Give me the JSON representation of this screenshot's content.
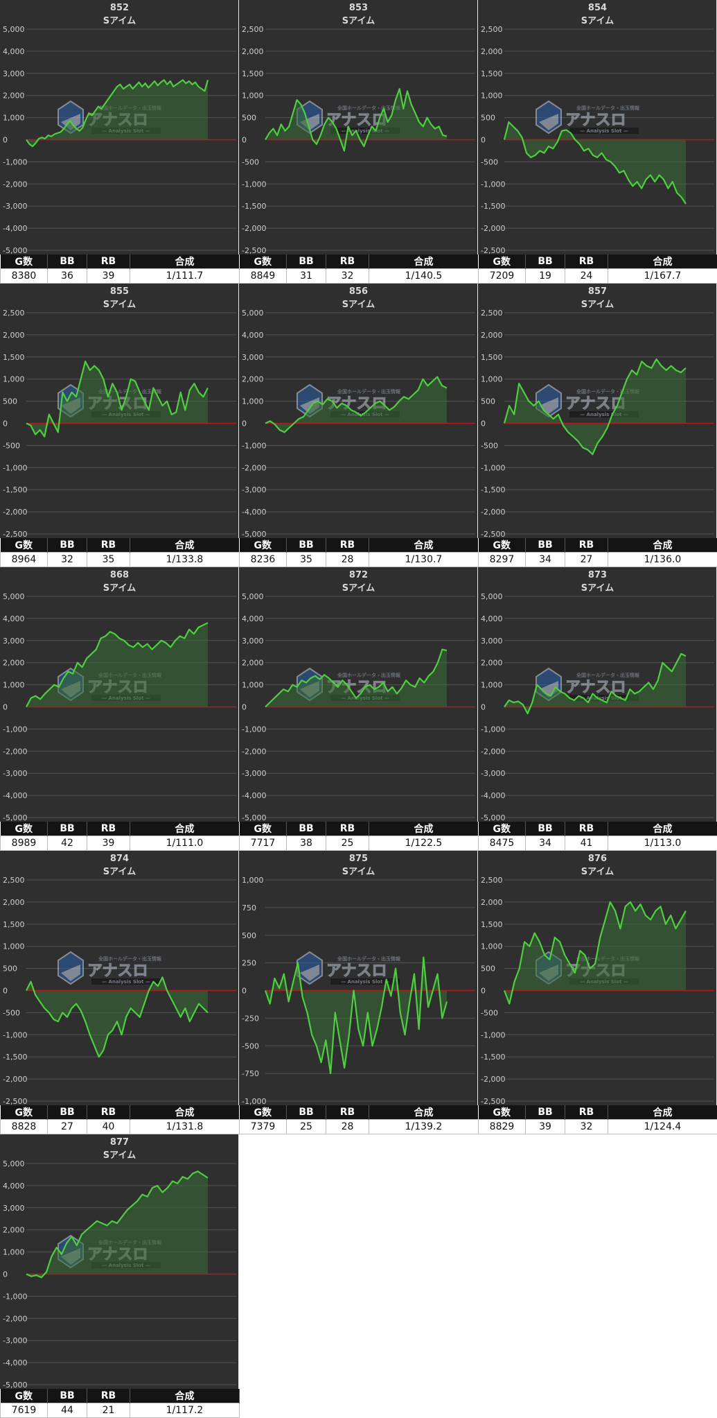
{
  "table_headers": [
    "G数",
    "BB",
    "RB",
    "合成"
  ],
  "watermark": {
    "brand": "アナスロ",
    "tagline": "Analysis Slot",
    "top_line": "全国ホールデータ・出玉情報"
  },
  "colors": {
    "line": "#4ecf40",
    "fill": "#3b6d36",
    "zero_line": "#b01d1d",
    "grid": "#555555",
    "panel_bg": "#2f2f2f"
  },
  "chart_data": [
    {
      "type": "line",
      "title": "852",
      "subtitle": "Sアイム",
      "ylim": [
        -5000,
        5000
      ],
      "yticks": [
        5000,
        4000,
        3000,
        2000,
        1000,
        0,
        -1000,
        -2000,
        -3000,
        -4000,
        -5000
      ],
      "values": [
        0,
        -200,
        -300,
        -150,
        50,
        100,
        50,
        200,
        150,
        250,
        300,
        350,
        500,
        700,
        850,
        650,
        500,
        400,
        550,
        900,
        1200,
        1100,
        1300,
        1500,
        1400,
        1600,
        1800,
        2000,
        2200,
        2400,
        2500,
        2300,
        2400,
        2500,
        2300,
        2450,
        2600,
        2400,
        2550,
        2350,
        2500,
        2650,
        2450,
        2600,
        2700,
        2500,
        2650,
        2400,
        2500,
        2600,
        2700,
        2550,
        2650,
        2500,
        2600,
        2400,
        2300,
        2200,
        2700
      ],
      "stats": {
        "games": "8380",
        "bb": "36",
        "rb": "39",
        "combined": "1/111.7"
      }
    },
    {
      "type": "line",
      "title": "853",
      "subtitle": "Sアイム",
      "ylim": [
        -2500,
        2500
      ],
      "yticks": [
        2500,
        2000,
        1500,
        1000,
        500,
        0,
        -500,
        -1000,
        -1500,
        -2000,
        -2500
      ],
      "values": [
        0,
        150,
        250,
        100,
        350,
        200,
        300,
        600,
        900,
        800,
        600,
        300,
        0,
        -100,
        100,
        350,
        500,
        400,
        250,
        0,
        -250,
        300,
        100,
        200,
        0,
        -150,
        100,
        300,
        200,
        500,
        700,
        400,
        550,
        900,
        1150,
        700,
        1100,
        800,
        600,
        400,
        300,
        500,
        350,
        250,
        300,
        100,
        80
      ],
      "stats": {
        "games": "8849",
        "bb": "31",
        "rb": "32",
        "combined": "1/140.5"
      }
    },
    {
      "type": "line",
      "title": "854",
      "subtitle": "Sアイム",
      "ylim": [
        -2500,
        2500
      ],
      "yticks": [
        2500,
        2000,
        1500,
        1000,
        500,
        0,
        -500,
        -1000,
        -1500,
        -2000,
        -2500
      ],
      "values": [
        0,
        400,
        300,
        200,
        50,
        -300,
        -400,
        -350,
        -250,
        -300,
        -150,
        -200,
        -50,
        200,
        220,
        150,
        0,
        -100,
        -250,
        -200,
        -350,
        -400,
        -300,
        -450,
        -500,
        -600,
        -750,
        -700,
        -900,
        -1050,
        -950,
        -1100,
        -900,
        -800,
        -950,
        -800,
        -900,
        -1100,
        -950,
        -1200,
        -1300,
        -1450
      ],
      "stats": {
        "games": "7209",
        "bb": "19",
        "rb": "24",
        "combined": "1/167.7"
      }
    },
    {
      "type": "line",
      "title": "855",
      "subtitle": "Sアイム",
      "ylim": [
        -2500,
        2500
      ],
      "yticks": [
        2500,
        2000,
        1500,
        1000,
        500,
        0,
        -500,
        -1000,
        -1500,
        -2000,
        -2500
      ],
      "values": [
        0,
        -50,
        -250,
        -150,
        -300,
        200,
        0,
        -200,
        700,
        500,
        700,
        600,
        1000,
        1400,
        1200,
        1300,
        1200,
        1000,
        600,
        900,
        700,
        300,
        600,
        1000,
        950,
        700,
        500,
        300,
        800,
        600,
        400,
        500,
        200,
        250,
        700,
        300,
        750,
        900,
        700,
        600,
        800
      ],
      "stats": {
        "games": "8964",
        "bb": "32",
        "rb": "35",
        "combined": "1/133.8"
      }
    },
    {
      "type": "line",
      "title": "856",
      "subtitle": "Sアイム",
      "ylim": [
        -5000,
        5000
      ],
      "yticks": [
        5000,
        4000,
        3000,
        2000,
        1000,
        0,
        -1000,
        -2000,
        -3000,
        -4000,
        -5000
      ],
      "values": [
        0,
        100,
        -50,
        -300,
        -400,
        -200,
        0,
        200,
        300,
        600,
        900,
        1000,
        850,
        1100,
        1000,
        700,
        900,
        800,
        600,
        500,
        350,
        500,
        700,
        900,
        1000,
        800,
        600,
        750,
        1000,
        1200,
        1100,
        1300,
        1500,
        2000,
        1700,
        1900,
        2100,
        1700,
        1600
      ],
      "stats": {
        "games": "8236",
        "bb": "35",
        "rb": "28",
        "combined": "1/130.7"
      }
    },
    {
      "type": "line",
      "title": "857",
      "subtitle": "Sアイム",
      "ylim": [
        -2500,
        2500
      ],
      "yticks": [
        2500,
        2000,
        1500,
        1000,
        500,
        0,
        -500,
        -1000,
        -1500,
        -2000,
        -2500
      ],
      "values": [
        0,
        400,
        200,
        900,
        700,
        500,
        400,
        500,
        300,
        200,
        100,
        200,
        -50,
        -200,
        -300,
        -400,
        -550,
        -600,
        -700,
        -450,
        -300,
        -100,
        200,
        400,
        700,
        1000,
        1200,
        1100,
        1400,
        1300,
        1250,
        1450,
        1300,
        1200,
        1300,
        1200,
        1150,
        1250
      ],
      "stats": {
        "games": "8297",
        "bb": "34",
        "rb": "27",
        "combined": "1/136.0"
      }
    },
    {
      "type": "line",
      "title": "868",
      "subtitle": "Sアイム",
      "ylim": [
        -5000,
        5000
      ],
      "yticks": [
        5000,
        4000,
        3000,
        2000,
        1000,
        0,
        -1000,
        -2000,
        -3000,
        -4000,
        -5000
      ],
      "values": [
        0,
        400,
        500,
        350,
        600,
        800,
        1000,
        900,
        1300,
        1600,
        1500,
        2000,
        1800,
        2200,
        2400,
        2600,
        3100,
        3200,
        3400,
        3300,
        3100,
        3000,
        2800,
        2700,
        2900,
        2700,
        2850,
        2600,
        2800,
        3000,
        2900,
        2700,
        3000,
        3200,
        3100,
        3500,
        3300,
        3600,
        3700,
        3800
      ],
      "stats": {
        "games": "8989",
        "bb": "42",
        "rb": "39",
        "combined": "1/111.0"
      }
    },
    {
      "type": "line",
      "title": "872",
      "subtitle": "Sアイム",
      "ylim": [
        -5000,
        5000
      ],
      "yticks": [
        5000,
        4000,
        3000,
        2000,
        1000,
        0,
        -1000,
        -2000,
        -3000,
        -4000,
        -5000
      ],
      "values": [
        0,
        200,
        400,
        600,
        800,
        700,
        1000,
        900,
        1200,
        1100,
        1300,
        1400,
        1250,
        1450,
        1300,
        1100,
        900,
        1200,
        1000,
        700,
        400,
        600,
        900,
        1000,
        800,
        900,
        1100,
        700,
        900,
        600,
        850,
        1200,
        1000,
        900,
        1300,
        1100,
        1400,
        1600,
        2000,
        2600,
        2550
      ],
      "stats": {
        "games": "7717",
        "bb": "38",
        "rb": "25",
        "combined": "1/122.5"
      }
    },
    {
      "type": "line",
      "title": "873",
      "subtitle": "Sアイム",
      "ylim": [
        -5000,
        5000
      ],
      "yticks": [
        5000,
        4000,
        3000,
        2000,
        1000,
        0,
        -1000,
        -2000,
        -3000,
        -4000,
        -5000
      ],
      "values": [
        0,
        300,
        200,
        250,
        100,
        -300,
        200,
        1000,
        800,
        600,
        500,
        900,
        700,
        600,
        400,
        300,
        500,
        400,
        200,
        600,
        400,
        300,
        200,
        700,
        500,
        400,
        300,
        800,
        600,
        700,
        900,
        1100,
        800,
        1200,
        2000,
        1800,
        1600,
        2000,
        2400,
        2300
      ],
      "stats": {
        "games": "8475",
        "bb": "34",
        "rb": "41",
        "combined": "1/113.0"
      }
    },
    {
      "type": "line",
      "title": "874",
      "subtitle": "Sアイム",
      "ylim": [
        -2500,
        2500
      ],
      "yticks": [
        2500,
        2000,
        1500,
        1000,
        500,
        0,
        -500,
        -1000,
        -1500,
        -2000,
        -2500
      ],
      "values": [
        0,
        200,
        -100,
        -250,
        -400,
        -500,
        -650,
        -700,
        -500,
        -600,
        -400,
        -300,
        -450,
        -700,
        -1000,
        -1250,
        -1500,
        -1350,
        -1000,
        -900,
        -700,
        -1000,
        -600,
        -400,
        -500,
        -600,
        -300,
        0,
        200,
        100,
        300,
        0,
        -200,
        -400,
        -600,
        -400,
        -700,
        -500,
        -300,
        -400,
        -500
      ],
      "stats": {
        "games": "8828",
        "bb": "27",
        "rb": "40",
        "combined": "1/131.8"
      }
    },
    {
      "type": "line",
      "title": "875",
      "subtitle": "Sアイム",
      "ylim": [
        -1000,
        1000
      ],
      "yticks": [
        1000,
        750,
        500,
        250,
        0,
        -250,
        -500,
        -750,
        -1000
      ],
      "values": [
        0,
        -120,
        110,
        20,
        150,
        -100,
        80,
        250,
        -60,
        -200,
        -400,
        -500,
        -650,
        -450,
        -750,
        -200,
        -450,
        -700,
        -400,
        0,
        -350,
        -500,
        -200,
        -500,
        -350,
        -150,
        100,
        -50,
        200,
        -200,
        -400,
        -100,
        150,
        -350,
        300,
        -150,
        0,
        150,
        -250,
        -100
      ],
      "stats": {
        "games": "7379",
        "bb": "25",
        "rb": "28",
        "combined": "1/139.2"
      }
    },
    {
      "type": "line",
      "title": "876",
      "subtitle": "Sアイム",
      "ylim": [
        -2500,
        2500
      ],
      "yticks": [
        2500,
        2000,
        1500,
        1000,
        500,
        0,
        -500,
        -1000,
        -1500,
        -2000,
        -2500
      ],
      "values": [
        0,
        -300,
        200,
        500,
        1100,
        1000,
        1300,
        1100,
        800,
        700,
        1200,
        1100,
        800,
        600,
        400,
        900,
        800,
        500,
        600,
        1200,
        1600,
        2000,
        1800,
        1400,
        1900,
        2000,
        1800,
        1950,
        1700,
        1600,
        1800,
        1900,
        1500,
        1700,
        1400,
        1600,
        1800
      ],
      "stats": {
        "games": "8829",
        "bb": "39",
        "rb": "32",
        "combined": "1/124.4"
      }
    },
    {
      "type": "line",
      "title": "877",
      "subtitle": "Sアイム",
      "ylim": [
        -5000,
        5000
      ],
      "yticks": [
        5000,
        4000,
        3000,
        2000,
        1000,
        0,
        -1000,
        -2000,
        -3000,
        -4000,
        -5000
      ],
      "values": [
        0,
        -100,
        -50,
        -150,
        100,
        800,
        1200,
        900,
        1400,
        1700,
        1300,
        1800,
        2000,
        2200,
        2400,
        2300,
        2200,
        2400,
        2300,
        2600,
        2900,
        3100,
        3300,
        3600,
        3500,
        3900,
        4000,
        3700,
        3900,
        4200,
        4100,
        4400,
        4300,
        4550,
        4650,
        4500,
        4350
      ],
      "stats": {
        "games": "7619",
        "bb": "44",
        "rb": "21",
        "combined": "1/117.2"
      }
    }
  ]
}
